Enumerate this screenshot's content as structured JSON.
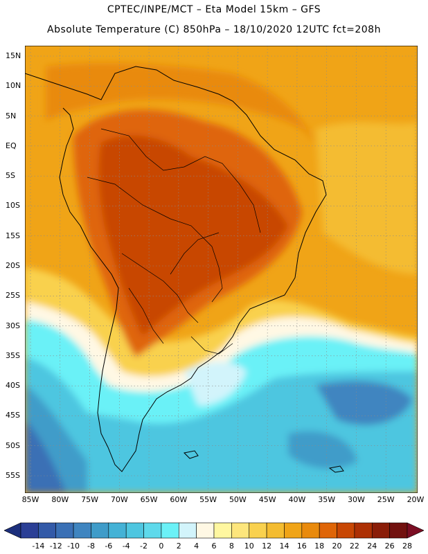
{
  "title": {
    "line1": "CPTEC/INPE/MCT –  Eta Model 15km – GFS",
    "line2": "Absolute Temperature (C) 850hPa – 18/10/2020 12UTC fct=208h"
  },
  "map": {
    "region": "South America",
    "lat_labels": [
      "15N",
      "10N",
      "5N",
      "EQ",
      "5S",
      "10S",
      "15S",
      "20S",
      "25S",
      "30S",
      "35S",
      "40S",
      "45S",
      "50S",
      "55S"
    ],
    "lon_labels": [
      "85W",
      "80W",
      "75W",
      "70W",
      "65W",
      "60W",
      "55W",
      "50W",
      "45W",
      "40W",
      "35W",
      "30W",
      "25W",
      "20W"
    ],
    "lat_values": [
      15,
      10,
      5,
      0,
      -5,
      -10,
      -15,
      -20,
      -25,
      -30,
      -35,
      -40,
      -45,
      -50,
      -55
    ],
    "lon_values": [
      -85,
      -80,
      -75,
      -70,
      -65,
      -60,
      -55,
      -50,
      -45,
      -40,
      -35,
      -30,
      -25,
      -20
    ]
  },
  "colorbar": {
    "labels": [
      "-14",
      "-12",
      "-10",
      "-8",
      "-6",
      "-4",
      "-2",
      "0",
      "2",
      "4",
      "6",
      "8",
      "10",
      "12",
      "14",
      "16",
      "18",
      "20",
      "22",
      "24",
      "26",
      "28"
    ],
    "colors": [
      "#2b3f96",
      "#335aa8",
      "#3a70b5",
      "#3f85c0",
      "#3f9cc9",
      "#44b2d6",
      "#4ec6e0",
      "#5ed9eb",
      "#6bf1f7",
      "#d2f4fb",
      "#fff8e4",
      "#fff7a0",
      "#fde67c",
      "#f9d14e",
      "#f4bc30",
      "#f0a417",
      "#e98a0c",
      "#df6507",
      "#c84704",
      "#ad3004",
      "#8a1d08",
      "#72110f"
    ],
    "low_arrow_color": "#1c2f7c",
    "high_arrow_color": "#7b0d23"
  }
}
